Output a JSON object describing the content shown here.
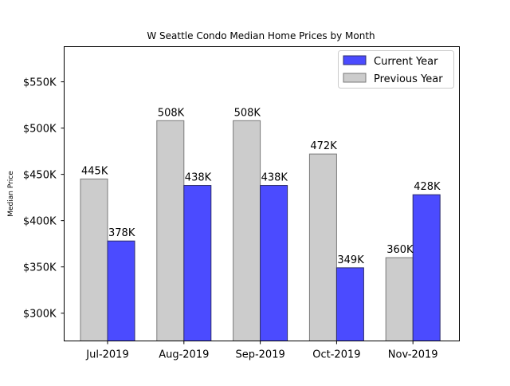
{
  "chart_data": {
    "type": "bar",
    "title": "W Seattle Condo Median Home Prices by Month",
    "xlabel": "",
    "ylabel": "Median Price",
    "categories": [
      "Jul-2019",
      "Aug-2019",
      "Sep-2019",
      "Oct-2019",
      "Nov-2019"
    ],
    "series": [
      {
        "name": "Previous Year",
        "color": "#cccccc",
        "edge": "#7a7a7a",
        "values": [
          445000,
          508000,
          508000,
          472000,
          360000
        ],
        "labels": [
          "445K",
          "508K",
          "508K",
          "472K",
          "360K"
        ]
      },
      {
        "name": "Current Year",
        "color": "#4b4bff",
        "edge": "#2b2b6b",
        "values": [
          378000,
          438000,
          438000,
          349000,
          428000
        ],
        "labels": [
          "378K",
          "438K",
          "438K",
          "349K",
          "428K"
        ]
      }
    ],
    "legend_order": [
      "Current Year",
      "Previous Year"
    ],
    "legend_position": "top-right",
    "ylim": [
      270000,
      588000
    ],
    "yticks": [
      300000,
      350000,
      400000,
      450000,
      500000,
      550000
    ],
    "ytick_labels": [
      "$300K",
      "$350K",
      "$400K",
      "$450K",
      "$500K",
      "$550K"
    ],
    "grid": false
  }
}
